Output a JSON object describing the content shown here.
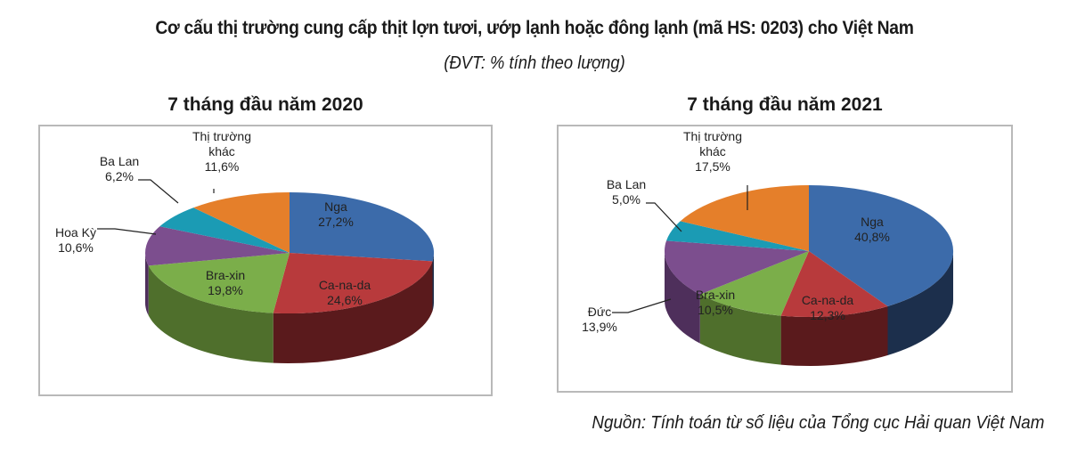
{
  "header": {
    "title": "Cơ cấu thị trường cung cấp thịt lợn tươi, ướp lạnh hoặc đông lạnh (mã HS: 0203) cho Việt Nam",
    "subtitle": "(ĐVT: % tính theo lượng)"
  },
  "footer": {
    "source": "Nguồn: Tính toán từ số liệu của Tổng cục Hải quan Việt Nam"
  },
  "colors": {
    "Nga": [
      "#3C6BAA",
      "#1C2F4C"
    ],
    "Ca-na-da": [
      "#B83A3C",
      "#5A1A1C"
    ],
    "Bra-xin": [
      "#7BAE4A",
      "#4F6F2C"
    ],
    "Hoa Kỳ": [
      "#7C4E8E",
      "#4E2F5B"
    ],
    "Đức": [
      "#7C4E8E",
      "#4E2F5B"
    ],
    "Ba Lan": [
      "#1B9BB4",
      "#0F6474"
    ],
    "Thị trường khác": [
      "#E57F2A",
      "#9A5219"
    ]
  },
  "chart_data": [
    {
      "type": "pie",
      "title": "7 tháng đầu năm 2020",
      "unit": "%",
      "categories": [
        "Nga",
        "Ca-na-da",
        "Bra-xin",
        "Hoa Kỳ",
        "Ba Lan",
        "Thị trường khác"
      ],
      "values": [
        27.2,
        24.6,
        19.8,
        10.6,
        6.2,
        11.6
      ],
      "value_labels": [
        "27,2%",
        "24,6%",
        "19,8%",
        "10,6%",
        "6,2%",
        "11,6%"
      ],
      "style": "3d-pie"
    },
    {
      "type": "pie",
      "title": "7 tháng đầu năm 2021",
      "unit": "%",
      "categories": [
        "Nga",
        "Ca-na-da",
        "Bra-xin",
        "Đức",
        "Ba Lan",
        "Thị trường khác"
      ],
      "values": [
        40.8,
        12.3,
        10.5,
        13.9,
        5.0,
        17.5
      ],
      "value_labels": [
        "40,8%",
        "12,3%",
        "10,5%",
        "13,9%",
        "5,0%",
        "17,5%"
      ],
      "style": "3d-pie"
    }
  ]
}
